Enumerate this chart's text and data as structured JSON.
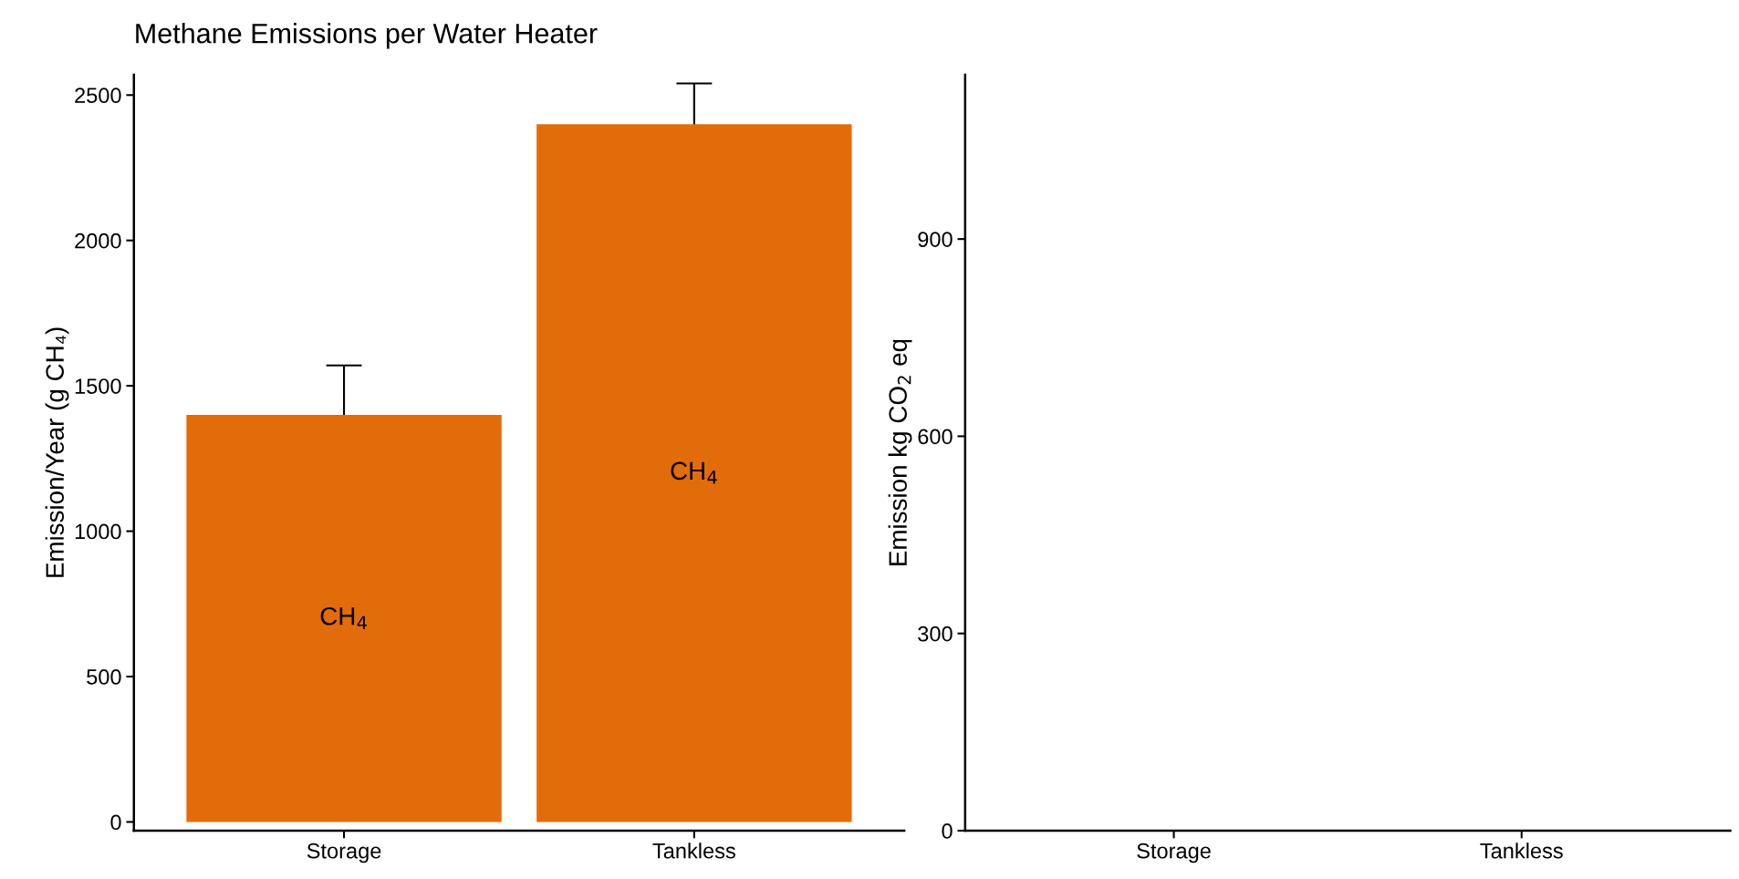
{
  "chart_data": [
    {
      "type": "bar",
      "title": "Methane Emissions per Water Heater",
      "ylabel": "Emission/Year (g CH₄)",
      "categories": [
        "Storage",
        "Tankless"
      ],
      "values": [
        1400,
        2400
      ],
      "errors": [
        170,
        140
      ],
      "color": "#e36c0a",
      "ylim": [
        -30,
        2570
      ],
      "yticks": [
        0,
        500,
        1000,
        1500,
        2000,
        2500
      ],
      "grid": false,
      "legend": false,
      "annotations": [
        "CH$_{4}$",
        "CH$_{4}$"
      ]
    },
    {
      "type": "bar",
      "ylabel": "Emission kg CO$_{2}$ eq",
      "categories": [
        "Storage",
        "Tankless"
      ],
      "values": [
        null,
        null
      ],
      "color": "#e36c0a",
      "ylim": [
        0,
        1150
      ],
      "yticks": [
        0,
        300,
        600,
        900
      ],
      "grid": false,
      "legend": false
    }
  ]
}
